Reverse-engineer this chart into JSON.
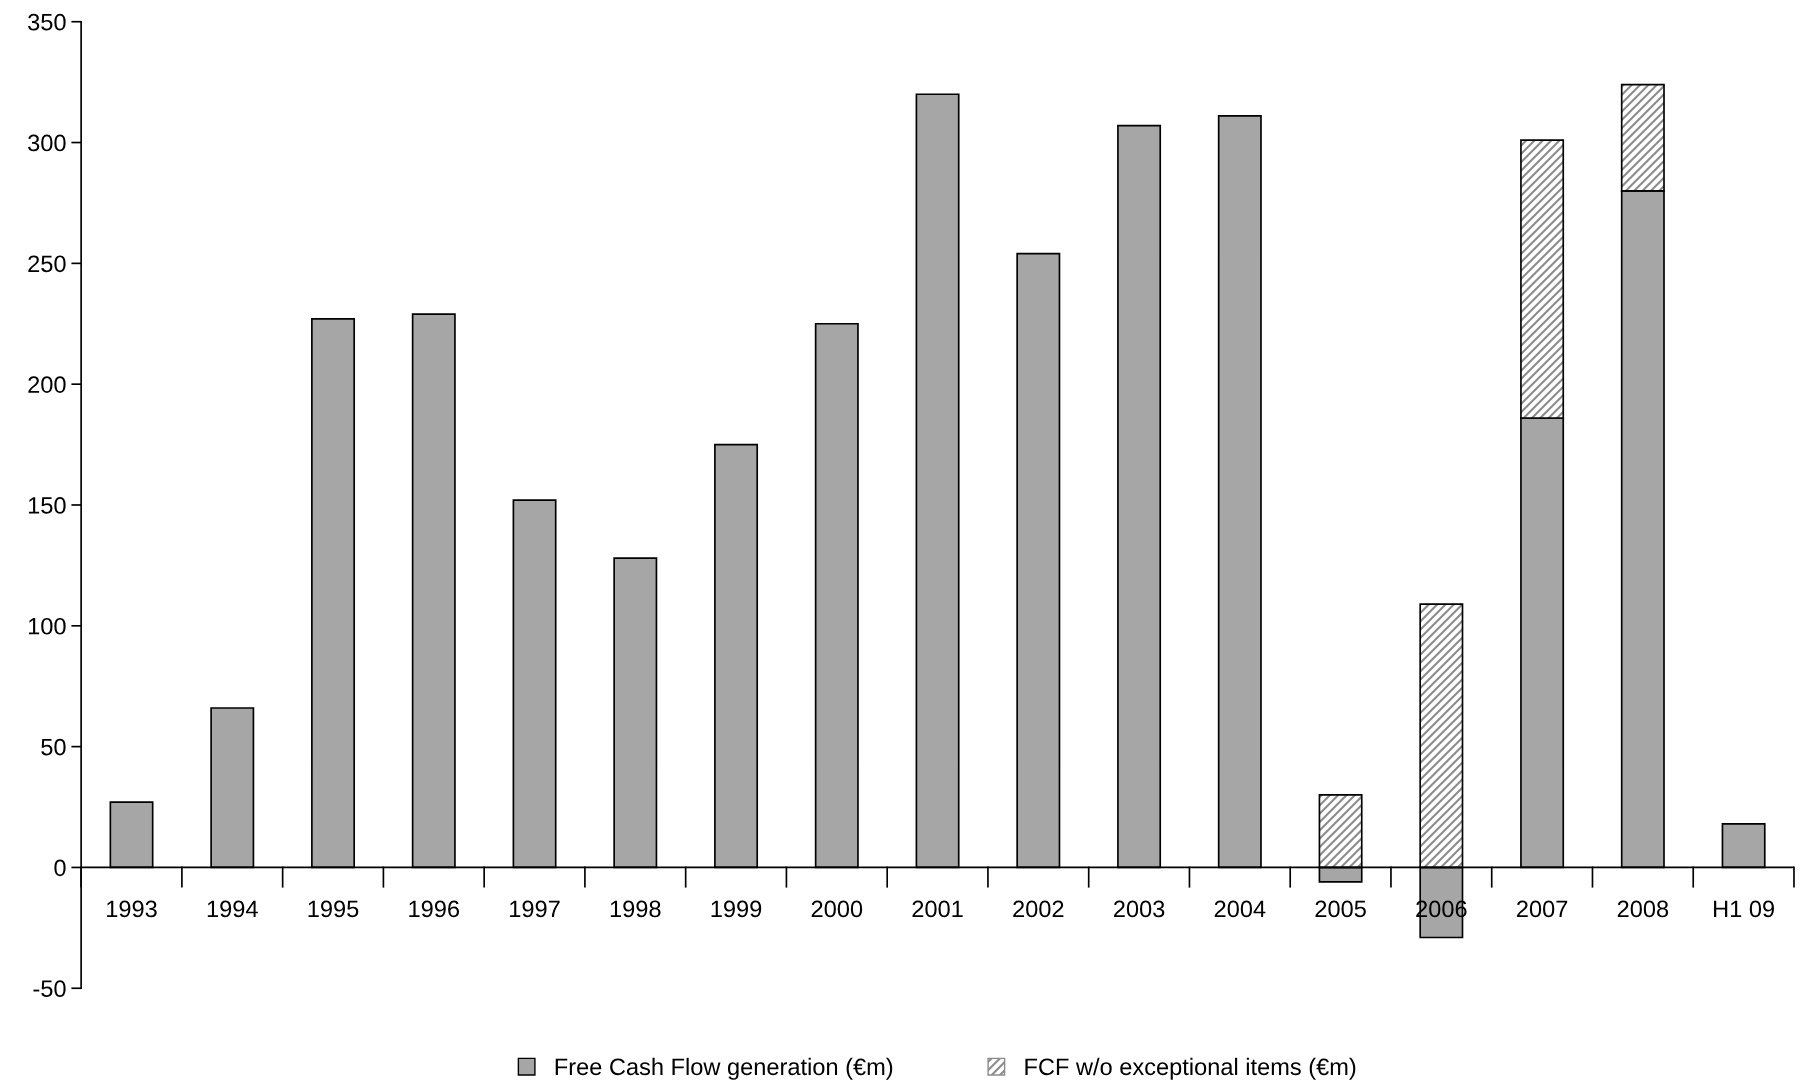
{
  "chart_data": {
    "type": "bar",
    "stacked": true,
    "categories": [
      "1993",
      "1994",
      "1995",
      "1996",
      "1997",
      "1998",
      "1999",
      "2000",
      "2001",
      "2002",
      "2003",
      "2004",
      "2005",
      "2006",
      "2007",
      "2008",
      "H1 09"
    ],
    "series": [
      {
        "name": "Free Cash Flow generation (€m)",
        "color": "#a6a6a6",
        "values": [
          27,
          66,
          227,
          229,
          152,
          128,
          175,
          225,
          320,
          254,
          307,
          311,
          -6,
          -29,
          186,
          280,
          18
        ]
      },
      {
        "name": "FCF w/o exceptional items (€m)",
        "color": "#8c8c8c",
        "values": [
          null,
          null,
          null,
          null,
          null,
          null,
          null,
          null,
          null,
          null,
          null,
          null,
          30,
          109,
          115,
          44,
          null
        ]
      }
    ],
    "ylim": [
      -50,
      350
    ],
    "yticks": [
      -50,
      0,
      50,
      100,
      150,
      200,
      250,
      300,
      350
    ],
    "legend": "bottom"
  }
}
